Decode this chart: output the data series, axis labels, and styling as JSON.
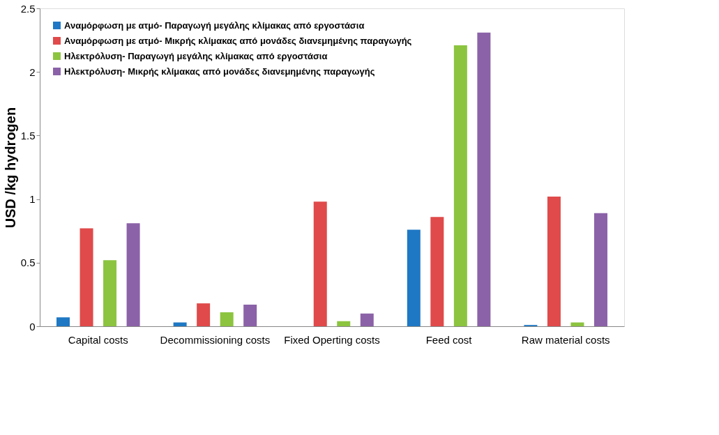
{
  "chart_data": {
    "type": "bar",
    "ylabel": "USD /kg hydrogen",
    "categories": [
      "Capital costs",
      "Decommissioning costs",
      "Fixed Operting costs",
      "Feed cost",
      "Raw material costs"
    ],
    "series": [
      {
        "name": "Αναμόρφωση με ατμό- Παραγωγή μεγάλης κλίμακας από εργοστάσια",
        "color": "#1f78c4",
        "values": [
          0.07,
          0.03,
          0.0,
          0.76,
          0.01
        ]
      },
      {
        "name": "Αναμόρφωση με ατμό- Μικρής κλίμακας από μονάδες διανεμημένης παραγωγής",
        "color": "#e04a4a",
        "values": [
          0.77,
          0.18,
          0.98,
          0.86,
          1.02
        ]
      },
      {
        "name": "Ηλεκτρόλυση- Παραγωγή μεγάλης κλίμακας από εργοστάσια",
        "color": "#8cc43f",
        "values": [
          0.52,
          0.11,
          0.04,
          2.21,
          0.03
        ]
      },
      {
        "name": "Ηλεκτρόλυση- Μικρής κλίμακας από μονάδες διανεμημένης παραγωγής",
        "color": "#8b62a8",
        "values": [
          0.81,
          0.17,
          0.1,
          2.31,
          0.89
        ]
      }
    ],
    "ylim": [
      0,
      2.5
    ],
    "yticks": [
      0,
      0.5,
      1,
      1.5,
      2,
      2.5
    ],
    "grid": false,
    "legend": "top left"
  }
}
